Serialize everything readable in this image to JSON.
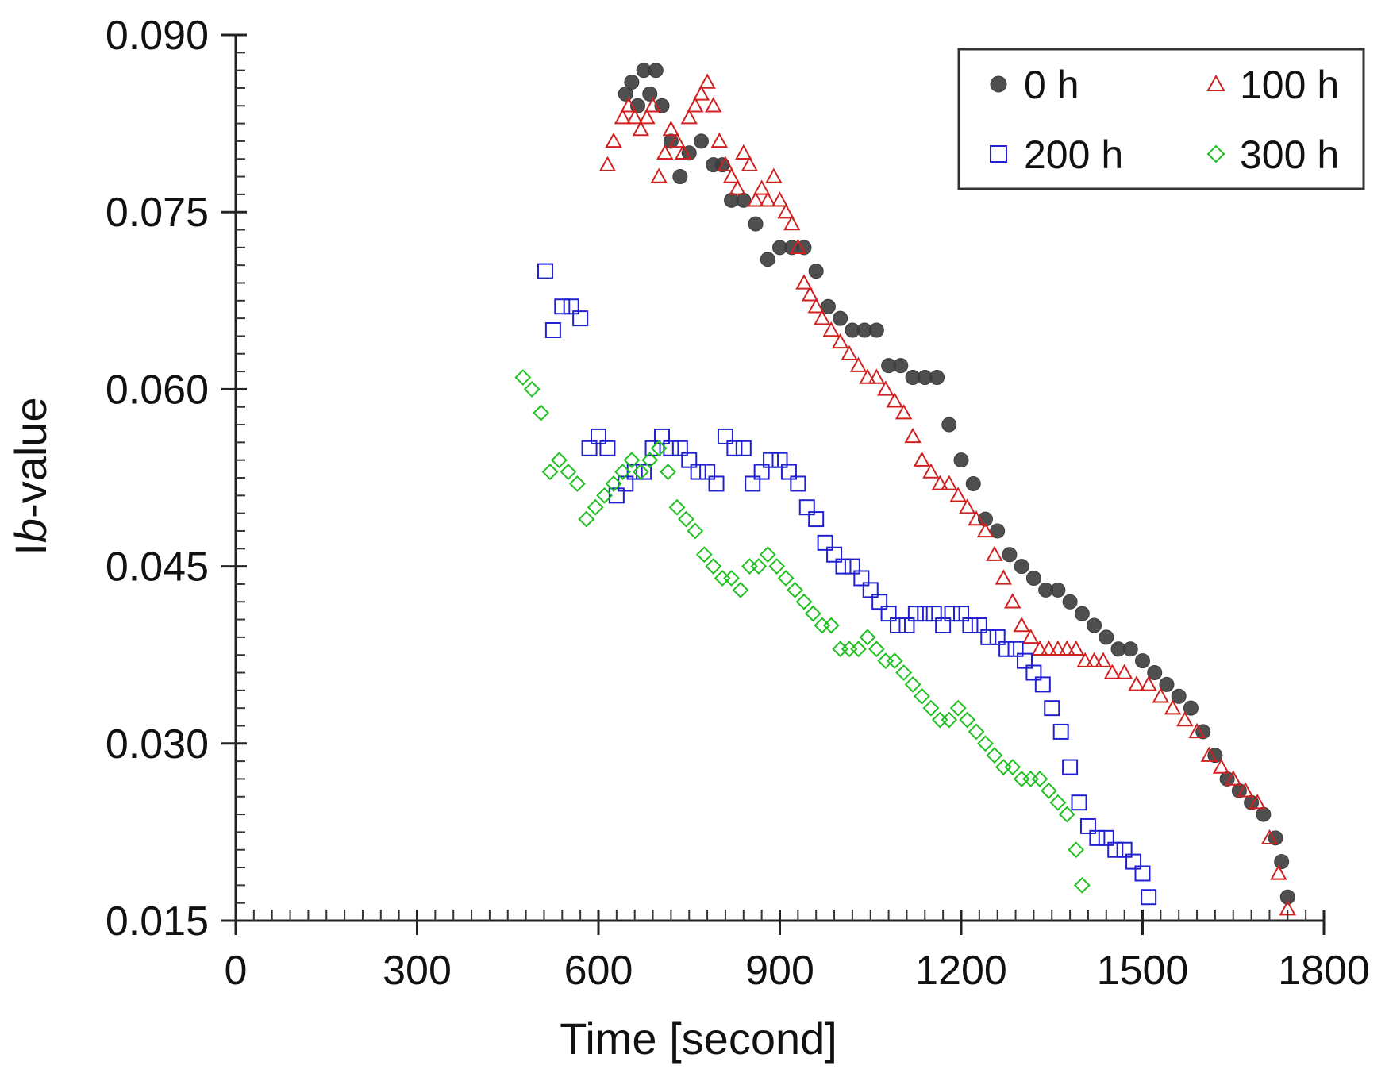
{
  "chart_data": {
    "type": "scatter",
    "title": "",
    "xlabel": "Time [second]",
    "ylabel_prefix": "I",
    "ylabel_italic": "b",
    "ylabel_suffix": "-value",
    "xlim": [
      0,
      1800
    ],
    "ylim": [
      0.015,
      0.09
    ],
    "xticks": [
      0,
      300,
      600,
      900,
      1200,
      1500,
      1800
    ],
    "xtick_labels": [
      "0",
      "300",
      "600",
      "900",
      "1200",
      "1500",
      "1800"
    ],
    "yticks": [
      0.015,
      0.03,
      0.045,
      0.06,
      0.075,
      0.09
    ],
    "ytick_labels": [
      "0.015",
      "0.030",
      "0.045",
      "0.060",
      "0.075",
      "0.090"
    ],
    "legend_position": "top-right",
    "series": [
      {
        "name": "0 h",
        "marker": "circle",
        "color": "#3c3c3c",
        "x": [
          645,
          655,
          665,
          675,
          685,
          695,
          705,
          720,
          735,
          750,
          770,
          790,
          805,
          820,
          840,
          860,
          880,
          900,
          920,
          940,
          960,
          980,
          1000,
          1020,
          1040,
          1060,
          1080,
          1100,
          1120,
          1140,
          1160,
          1180,
          1200,
          1220,
          1240,
          1260,
          1280,
          1300,
          1320,
          1340,
          1360,
          1380,
          1400,
          1420,
          1440,
          1460,
          1480,
          1500,
          1520,
          1540,
          1560,
          1580,
          1600,
          1620,
          1640,
          1660,
          1680,
          1700,
          1720,
          1730,
          1740
        ],
        "y": [
          0.085,
          0.086,
          0.084,
          0.087,
          0.085,
          0.087,
          0.084,
          0.081,
          0.078,
          0.08,
          0.081,
          0.079,
          0.079,
          0.076,
          0.076,
          0.074,
          0.071,
          0.072,
          0.072,
          0.072,
          0.07,
          0.067,
          0.066,
          0.065,
          0.065,
          0.065,
          0.062,
          0.062,
          0.061,
          0.061,
          0.061,
          0.057,
          0.054,
          0.052,
          0.049,
          0.048,
          0.046,
          0.045,
          0.044,
          0.043,
          0.043,
          0.042,
          0.041,
          0.04,
          0.039,
          0.038,
          0.038,
          0.037,
          0.036,
          0.035,
          0.034,
          0.033,
          0.031,
          0.029,
          0.027,
          0.026,
          0.025,
          0.024,
          0.022,
          0.02,
          0.017
        ]
      },
      {
        "name": "100 h",
        "marker": "triangle",
        "color": "#d02020",
        "x": [
          615,
          625,
          640,
          650,
          660,
          670,
          680,
          690,
          700,
          710,
          720,
          730,
          740,
          750,
          760,
          770,
          780,
          790,
          800,
          810,
          820,
          830,
          840,
          850,
          860,
          870,
          880,
          890,
          900,
          910,
          920,
          930,
          940,
          950,
          960,
          970,
          985,
          1000,
          1015,
          1030,
          1045,
          1060,
          1075,
          1090,
          1105,
          1120,
          1135,
          1150,
          1165,
          1180,
          1195,
          1210,
          1225,
          1240,
          1255,
          1270,
          1285,
          1300,
          1315,
          1330,
          1345,
          1360,
          1375,
          1390,
          1405,
          1420,
          1435,
          1450,
          1470,
          1490,
          1510,
          1530,
          1550,
          1570,
          1590,
          1610,
          1630,
          1650,
          1670,
          1690,
          1710,
          1725,
          1740
        ],
        "y": [
          0.079,
          0.081,
          0.083,
          0.084,
          0.083,
          0.082,
          0.083,
          0.084,
          0.078,
          0.08,
          0.082,
          0.081,
          0.08,
          0.083,
          0.084,
          0.085,
          0.086,
          0.084,
          0.081,
          0.079,
          0.078,
          0.077,
          0.08,
          0.079,
          0.076,
          0.077,
          0.076,
          0.078,
          0.076,
          0.075,
          0.074,
          0.072,
          0.069,
          0.068,
          0.067,
          0.066,
          0.065,
          0.064,
          0.063,
          0.062,
          0.061,
          0.061,
          0.06,
          0.059,
          0.058,
          0.056,
          0.054,
          0.053,
          0.052,
          0.052,
          0.051,
          0.05,
          0.049,
          0.048,
          0.046,
          0.044,
          0.042,
          0.04,
          0.039,
          0.038,
          0.038,
          0.038,
          0.038,
          0.038,
          0.037,
          0.037,
          0.037,
          0.036,
          0.036,
          0.035,
          0.035,
          0.034,
          0.033,
          0.032,
          0.031,
          0.029,
          0.028,
          0.027,
          0.026,
          0.025,
          0.022,
          0.019,
          0.016
        ]
      },
      {
        "name": "200 h",
        "marker": "square",
        "color": "#2020d0",
        "x": [
          512,
          525,
          540,
          555,
          570,
          585,
          600,
          615,
          630,
          645,
          660,
          675,
          690,
          705,
          720,
          735,
          750,
          765,
          780,
          795,
          810,
          825,
          840,
          855,
          870,
          885,
          900,
          915,
          930,
          945,
          960,
          975,
          990,
          1005,
          1020,
          1035,
          1050,
          1065,
          1080,
          1095,
          1110,
          1125,
          1140,
          1155,
          1170,
          1185,
          1200,
          1215,
          1230,
          1245,
          1260,
          1275,
          1290,
          1305,
          1320,
          1335,
          1350,
          1365,
          1380,
          1395,
          1410,
          1425,
          1440,
          1455,
          1470,
          1485,
          1500,
          1510
        ],
        "y": [
          0.07,
          0.065,
          0.067,
          0.067,
          0.066,
          0.055,
          0.056,
          0.055,
          0.051,
          0.052,
          0.053,
          0.053,
          0.055,
          0.056,
          0.055,
          0.055,
          0.054,
          0.053,
          0.053,
          0.052,
          0.056,
          0.055,
          0.055,
          0.052,
          0.053,
          0.054,
          0.054,
          0.053,
          0.052,
          0.05,
          0.049,
          0.047,
          0.046,
          0.045,
          0.045,
          0.044,
          0.043,
          0.042,
          0.041,
          0.04,
          0.04,
          0.041,
          0.041,
          0.041,
          0.04,
          0.041,
          0.041,
          0.04,
          0.04,
          0.039,
          0.039,
          0.038,
          0.038,
          0.037,
          0.036,
          0.035,
          0.033,
          0.031,
          0.028,
          0.025,
          0.023,
          0.022,
          0.022,
          0.021,
          0.021,
          0.02,
          0.019,
          0.017
        ]
      },
      {
        "name": "300 h",
        "marker": "diamond",
        "color": "#20c020",
        "x": [
          475,
          490,
          505,
          520,
          535,
          550,
          565,
          580,
          595,
          610,
          625,
          640,
          655,
          670,
          685,
          700,
          715,
          730,
          745,
          760,
          775,
          790,
          805,
          820,
          835,
          850,
          865,
          880,
          895,
          910,
          925,
          940,
          955,
          970,
          985,
          1000,
          1015,
          1030,
          1045,
          1060,
          1075,
          1090,
          1105,
          1120,
          1135,
          1150,
          1165,
          1180,
          1195,
          1210,
          1225,
          1240,
          1255,
          1270,
          1285,
          1300,
          1315,
          1330,
          1345,
          1360,
          1375,
          1390,
          1400
        ],
        "y": [
          0.061,
          0.06,
          0.058,
          0.053,
          0.054,
          0.053,
          0.052,
          0.049,
          0.05,
          0.051,
          0.052,
          0.053,
          0.054,
          0.053,
          0.054,
          0.055,
          0.053,
          0.05,
          0.049,
          0.048,
          0.046,
          0.045,
          0.044,
          0.044,
          0.043,
          0.045,
          0.045,
          0.046,
          0.045,
          0.044,
          0.043,
          0.042,
          0.041,
          0.04,
          0.04,
          0.038,
          0.038,
          0.038,
          0.039,
          0.038,
          0.037,
          0.037,
          0.036,
          0.035,
          0.034,
          0.033,
          0.032,
          0.032,
          0.033,
          0.032,
          0.031,
          0.03,
          0.029,
          0.028,
          0.028,
          0.027,
          0.027,
          0.027,
          0.026,
          0.025,
          0.024,
          0.021,
          0.018
        ]
      }
    ]
  }
}
